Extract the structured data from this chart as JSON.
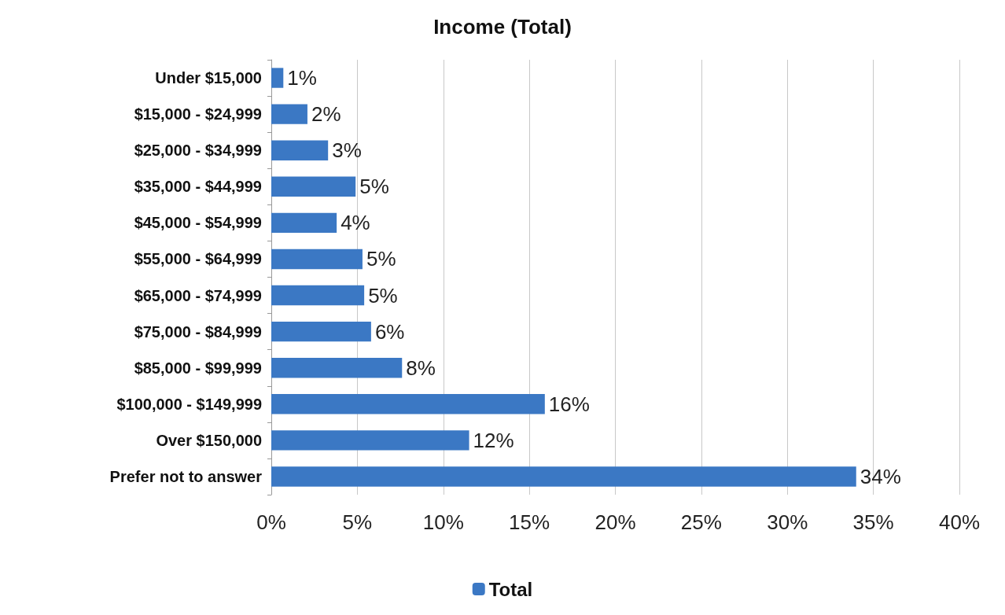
{
  "chart_data": {
    "type": "bar",
    "orientation": "horizontal",
    "title": "Income (Total)",
    "categories": [
      "Under $15,000",
      "$15,000 - $24,999",
      "$25,000 - $34,999",
      "$35,000 - $44,999",
      "$45,000 - $54,999",
      "$55,000 - $64,999",
      "$65,000 - $74,999",
      "$75,000 - $84,999",
      "$85,000 - $99,999",
      "$100,000 - $149,999",
      "Over $150,000",
      "Prefer not to answer"
    ],
    "series": [
      {
        "name": "Total",
        "color": "#3b78c4",
        "values": [
          0.7,
          2.1,
          3.3,
          4.9,
          3.8,
          5.3,
          5.4,
          5.8,
          7.6,
          15.9,
          11.5,
          34.0
        ],
        "value_labels": [
          "1%",
          "2%",
          "3%",
          "5%",
          "4%",
          "5%",
          "5%",
          "6%",
          "8%",
          "16%",
          "12%",
          "34%"
        ]
      }
    ],
    "xlim": [
      0,
      40
    ],
    "xticks": [
      {
        "value": 0,
        "label": "0%"
      },
      {
        "value": 5,
        "label": "5%"
      },
      {
        "value": 10,
        "label": "10%"
      },
      {
        "value": 15,
        "label": "15%"
      },
      {
        "value": 20,
        "label": "20%"
      },
      {
        "value": 25,
        "label": "25%"
      },
      {
        "value": 30,
        "label": "30%"
      },
      {
        "value": 35,
        "label": "35%"
      },
      {
        "value": 40,
        "label": "40%"
      }
    ],
    "grid": "x",
    "legend": "bottom"
  }
}
